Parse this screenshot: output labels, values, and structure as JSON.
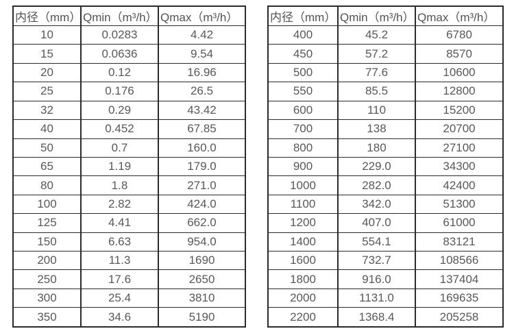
{
  "colors": {
    "text": "#58585a",
    "border": "#2b2b2b",
    "background": "#ffffff"
  },
  "tables": [
    {
      "name": "small-diameters",
      "headers": [
        "内径（mm）",
        "Qmin（m³/h）",
        "Qmax（m³/h）"
      ],
      "rows": [
        [
          "10",
          "0.0283",
          "4.42"
        ],
        [
          "15",
          "0.0636",
          "9.54"
        ],
        [
          "20",
          "0.12",
          "16.96"
        ],
        [
          "25",
          "0.176",
          "26.5"
        ],
        [
          "32",
          "0.29",
          "43.42"
        ],
        [
          "40",
          "0.452",
          "67.85"
        ],
        [
          "50",
          "0.7",
          "160.0"
        ],
        [
          "65",
          "1.19",
          "179.0"
        ],
        [
          "80",
          "1.8",
          "271.0"
        ],
        [
          "100",
          "2.82",
          "424.0"
        ],
        [
          "125",
          "4.41",
          "662.0"
        ],
        [
          "150",
          "6.63",
          "954.0"
        ],
        [
          "200",
          "11.3",
          "1690"
        ],
        [
          "250",
          "17.6",
          "2650"
        ],
        [
          "300",
          "25.4",
          "3810"
        ],
        [
          "350",
          "34.6",
          "5190"
        ]
      ]
    },
    {
      "name": "large-diameters",
      "headers": [
        "内径（mm）",
        "Qmin（m³/h）",
        "Qmax（m³/h）"
      ],
      "rows": [
        [
          "400",
          "45.2",
          "6780"
        ],
        [
          "450",
          "57.2",
          "8570"
        ],
        [
          "500",
          "77.6",
          "10600"
        ],
        [
          "550",
          "85.5",
          "12800"
        ],
        [
          "600",
          "110",
          "15200"
        ],
        [
          "700",
          "138",
          "20700"
        ],
        [
          "800",
          "180",
          "27100"
        ],
        [
          "900",
          "229.0",
          "34300"
        ],
        [
          "1000",
          "282.0",
          "42400"
        ],
        [
          "1100",
          "342.0",
          "51300"
        ],
        [
          "1200",
          "407.0",
          "61000"
        ],
        [
          "1400",
          "554.1",
          "83121"
        ],
        [
          "1600",
          "732.7",
          "108566"
        ],
        [
          "1800",
          "916.0",
          "137404"
        ],
        [
          "2000",
          "1131.0",
          "169635"
        ],
        [
          "2200",
          "1368.4",
          "205258"
        ]
      ]
    }
  ]
}
